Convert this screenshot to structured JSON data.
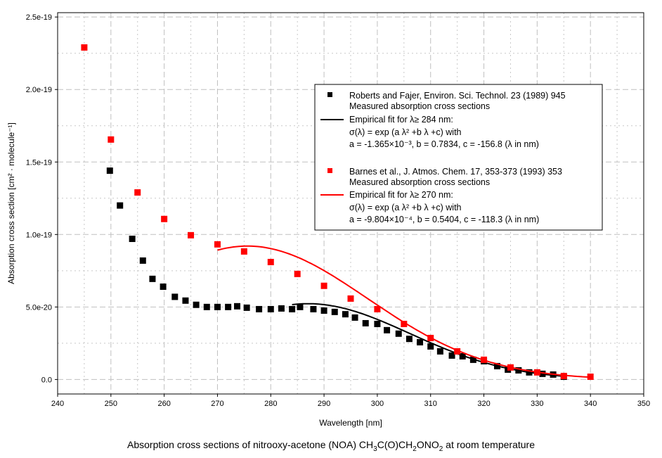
{
  "chart_data": {
    "type": "scatter",
    "title": "Absorption cross sections of nitrooxy-acetone (NOA) CH3C(O)CH2ONO2 at room temperature",
    "title_parts": [
      "Absorption cross sections of nitrooxy-acetone (NOA) CH",
      "3",
      "C(O)CH",
      "2",
      "ONO",
      "2",
      " at room temperature"
    ],
    "xlabel": "Wavelength [nm]",
    "ylabel": "Absorption cross section [cm² · molecule⁻¹]",
    "xlim": [
      240,
      350
    ],
    "ylim": [
      -1e-20,
      2.53e-19
    ],
    "xticks": [
      240,
      250,
      260,
      270,
      280,
      290,
      300,
      310,
      320,
      330,
      340,
      350
    ],
    "yticks": [
      0,
      5e-20,
      1e-19,
      1.5e-19,
      2e-19,
      2.5e-19
    ],
    "ytick_labels": [
      "0.0",
      "5.0e-20",
      "1.0e-19",
      "1.5e-19",
      "2.0e-19",
      "2.5e-19"
    ],
    "grid": true,
    "legend_position": "top-right",
    "series": [
      {
        "name": "Roberts and Fajer, Environ. Sci. Technol. 23 (1989) 945",
        "subtitle": "Measured absorption cross sections",
        "type": "scatter",
        "color": "#000000",
        "x": [
          249.8,
          251.7,
          254,
          256,
          257.8,
          259.8,
          262,
          264,
          266,
          268,
          270,
          272,
          273.7,
          275.5,
          277.8,
          280,
          282,
          284,
          285.5,
          288,
          290,
          292,
          294,
          295.8,
          297.8,
          300,
          301.8,
          304,
          306,
          308,
          310,
          311.8,
          314,
          316,
          318,
          320,
          322.5,
          324.5,
          326.5,
          328.5,
          331,
          333,
          335
        ],
        "y": [
          1.44e-19,
          1.2e-19,
          9.7e-20,
          8.2e-20,
          6.94e-20,
          6.4e-20,
          5.7e-20,
          5.44e-20,
          5.15e-20,
          5e-20,
          5e-20,
          5e-20,
          5.05e-20,
          4.95e-20,
          4.85e-20,
          4.85e-20,
          4.9e-20,
          4.85e-20,
          5e-20,
          4.85e-20,
          4.75e-20,
          4.66e-20,
          4.5e-20,
          4.27e-20,
          3.88e-20,
          3.83e-20,
          3.4e-20,
          3.16e-20,
          2.8e-20,
          2.57e-20,
          2.28e-20,
          1.94e-20,
          1.65e-20,
          1.6e-20,
          1.36e-20,
          1.26e-20,
          9.2e-21,
          6.8e-21,
          6.3e-21,
          4.9e-21,
          3.9e-21,
          3.4e-21,
          1.9e-21
        ]
      },
      {
        "name": "Empirical fit for λ≥ 284 nm:",
        "type": "line",
        "color": "#000000",
        "fit": {
          "a": -0.001365,
          "b": 0.7834,
          "c": -156.8,
          "from": 284,
          "to": 335
        },
        "lines": [
          "σ(λ) = exp (a λ² +b λ +c) with",
          "a = -1.365×10⁻³, b =  0.7834, c = -156.8 (λ in nm)"
        ]
      },
      {
        "name": "Barnes et al., J. Atmos. Chem. 17, 353-373 (1993) 353",
        "subtitle": "Measured absorption cross sections",
        "type": "scatter",
        "color": "#ff0000",
        "x": [
          245,
          250,
          255,
          260,
          265,
          270,
          275,
          280,
          285,
          290,
          295,
          300,
          305,
          310,
          315,
          320,
          325,
          330,
          335,
          340
        ],
        "y": [
          2.29e-19,
          1.655e-19,
          1.29e-19,
          1.107e-19,
          9.95e-20,
          9.32e-20,
          8.83e-20,
          8.1e-20,
          7.28e-20,
          6.46e-20,
          5.58e-20,
          4.85e-20,
          3.83e-20,
          2.86e-20,
          1.94e-20,
          1.36e-20,
          8.3e-21,
          4.9e-21,
          2.4e-21,
          1.9e-21
        ]
      },
      {
        "name": "Empirical fit for λ≥ 270 nm:",
        "type": "line",
        "color": "#ff0000",
        "fit": {
          "a": -0.0009804,
          "b": 0.5404,
          "c": -118.3,
          "from": 270,
          "to": 340
        },
        "lines": [
          "σ(λ) = exp (a λ² +b λ +c) with",
          "a = -9.804×10⁻⁴, b =  0.5404, c = -118.3 (λ in nm)"
        ]
      }
    ]
  }
}
